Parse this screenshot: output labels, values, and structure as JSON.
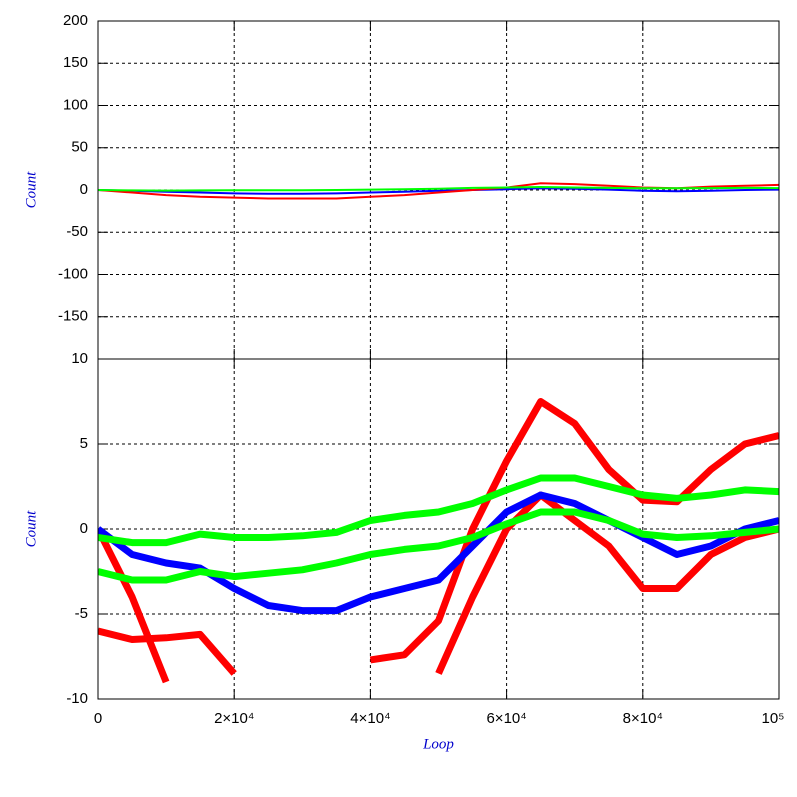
{
  "chart_data": [
    {
      "type": "line",
      "y_label": "Count",
      "x": [
        0,
        5000,
        10000,
        15000,
        20000,
        25000,
        30000,
        35000,
        40000,
        45000,
        50000,
        55000,
        60000,
        65000,
        70000,
        75000,
        80000,
        85000,
        90000,
        95000,
        100000
      ],
      "xlim": [
        0,
        100000
      ],
      "ylim": [
        -200,
        200
      ],
      "yticks": [
        200,
        150,
        100,
        50,
        0,
        -50,
        -100,
        -150
      ],
      "grid": true,
      "series": [
        {
          "color": "#0000ff",
          "values": [
            0,
            -1,
            -2,
            -3,
            -4,
            -4.5,
            -4.5,
            -4,
            -3,
            -2,
            -1,
            0,
            1,
            2,
            1.5,
            0.5,
            -1,
            -1.5,
            -1,
            0,
            0.5
          ]
        },
        {
          "color": "#ff0000",
          "values": [
            0,
            -3,
            -6,
            -8,
            -9,
            -10,
            -10,
            -10,
            -8,
            -6,
            -3,
            0,
            3,
            8,
            7,
            5,
            3,
            2,
            4,
            5,
            6
          ]
        },
        {
          "color": "#00ff00",
          "values": [
            0,
            -0.5,
            -0.7,
            -0.5,
            -0.3,
            -0.2,
            -0.2,
            0,
            0.5,
            1,
            1.5,
            2.5,
            3,
            3.5,
            3,
            2.5,
            2,
            2,
            2.2,
            2.5,
            2.2
          ]
        }
      ]
    },
    {
      "type": "line",
      "x_label": "Loop",
      "y_label": "Count",
      "x": [
        0,
        5000,
        10000,
        15000,
        20000,
        25000,
        30000,
        35000,
        40000,
        45000,
        50000,
        55000,
        60000,
        65000,
        70000,
        75000,
        80000,
        85000,
        90000,
        95000,
        100000
      ],
      "xlim": [
        0,
        100000
      ],
      "xticks": [
        0,
        {
          "value": 20000,
          "label": "2×10⁴"
        },
        {
          "value": 40000,
          "label": "4×10⁴"
        },
        {
          "value": 60000,
          "label": "6×10⁴"
        },
        {
          "value": 80000,
          "label": "8×10⁴"
        },
        {
          "value": 100000,
          "label": "10⁵"
        }
      ],
      "ylim": [
        -10,
        10
      ],
      "yticks": [
        10,
        5,
        0,
        -5,
        -10
      ],
      "grid": true,
      "series": [
        {
          "color": "#ff0000",
          "values": [
            -6,
            -6.5,
            -6.4,
            -6.2,
            -8.5,
            null,
            null,
            null,
            -7.7,
            -7.4,
            -5.4,
            0,
            4,
            7.5,
            6.2,
            3.5,
            1.7,
            1.6,
            3.5,
            5,
            5.5
          ]
        },
        {
          "color": "#ff0000",
          "values": [
            0,
            -4,
            -9,
            null,
            null,
            null,
            null,
            null,
            null,
            null,
            -8.5,
            -4,
            0,
            2,
            0.5,
            -1,
            -3.5,
            -3.5,
            -1.5,
            -0.5,
            0
          ]
        },
        {
          "color": "#0000ff",
          "values": [
            0,
            -1.5,
            -2,
            -2.3,
            -3.5,
            -4.5,
            -4.8,
            -4.8,
            -4,
            -3.5,
            -3,
            -1,
            1,
            2,
            1.5,
            0.5,
            -0.5,
            -1.5,
            -1,
            0,
            0.5
          ]
        },
        {
          "color": "#00ff00",
          "values": [
            -0.5,
            -0.8,
            -0.8,
            -0.3,
            -0.5,
            -0.5,
            -0.4,
            -0.2,
            0.5,
            0.8,
            1,
            1.5,
            2.3,
            3,
            3,
            2.5,
            2,
            1.8,
            2,
            2.3,
            2.2
          ]
        },
        {
          "color": "#00ff00",
          "values": [
            -2.5,
            -3,
            -3,
            -2.5,
            -2.8,
            -2.6,
            -2.4,
            -2,
            -1.5,
            -1.2,
            -1,
            -0.5,
            0.3,
            1,
            1,
            0.5,
            -0.3,
            -0.5,
            -0.4,
            -0.2,
            0
          ]
        }
      ]
    }
  ]
}
